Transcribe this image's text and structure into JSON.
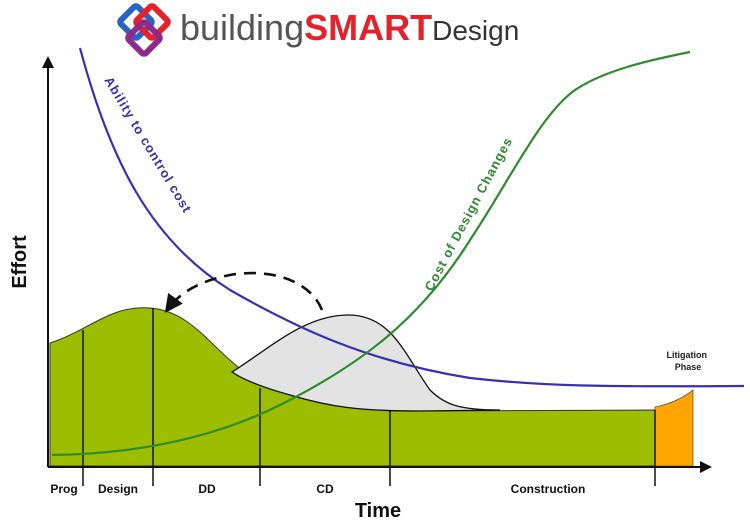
{
  "logo": {
    "part1": "building",
    "part2": "SMART",
    "part3": "Design"
  },
  "axes": {
    "y_label": "Effort",
    "x_label": "Time"
  },
  "phases": [
    "Prog",
    "Design",
    "DD",
    "CD",
    "Construction"
  ],
  "curves": {
    "ability": "Ability to control cost",
    "cost": "Cost of Design Changes"
  },
  "litigation": {
    "line1": "Litigation",
    "line2": "Phase"
  },
  "colors": {
    "effort_fill": "#9dbd00",
    "shifted_fill": "#e3e3e3",
    "ability_curve": "#3a2fb0",
    "cost_curve": "#2e8b2e",
    "litigation_fill": "#ffa500",
    "smart_red": "#e8202a",
    "logo_gray": "#555555"
  }
}
